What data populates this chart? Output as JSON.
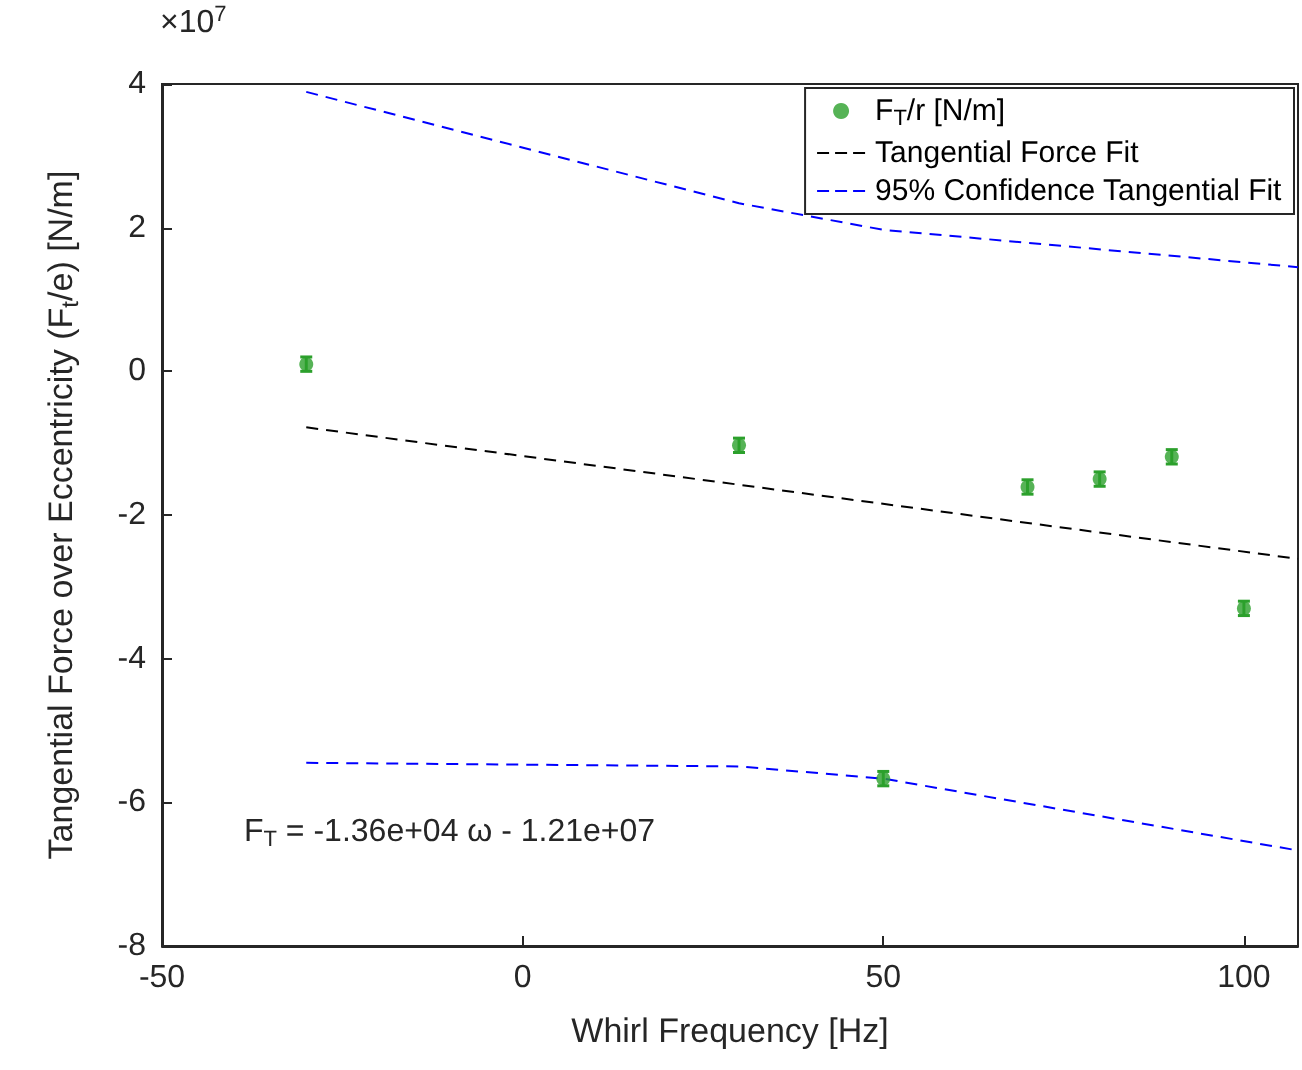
{
  "chart_data": {
    "type": "scatter",
    "xlabel": "Whirl Frequency [Hz]",
    "ylabel": "Tangential Force over Eccentricity (F$_{t}$/e) [N/m]",
    "xlim": [
      -50,
      107.5
    ],
    "xticks": [
      -50,
      0,
      50,
      100
    ],
    "ylim": [
      -8,
      4
    ],
    "yticks": [
      -8,
      -6,
      -4,
      -2,
      0,
      2,
      4
    ],
    "grid": false,
    "legend": "top right",
    "marker": "circle",
    "series": [
      {
        "name": "F$_{T}$/r [N/m]",
        "color": "#2ca02c",
        "x": [
          -30,
          30,
          50,
          70,
          80,
          90,
          100
        ],
        "values": [
          0.1,
          -1.03,
          -5.67,
          -1.61,
          -1.5,
          -1.19,
          -3.3
        ],
        "errors": [
          0.1,
          0.1,
          0.1,
          0.1,
          0.1,
          0.1,
          0.1
        ]
      },
      {
        "name": "Tangential Force Fit",
        "type": "line",
        "color": "#000000",
        "line_style": "dashed",
        "marker": "none",
        "x": [
          -30,
          107.5
        ],
        "values": [
          -0.78,
          -2.61
        ]
      },
      {
        "name": "95% Confidence Tangential Fit",
        "type": "line",
        "color": "#0000ff",
        "line_style": "dashed",
        "marker": "none",
        "x": [
          -30,
          30,
          50,
          107.5
        ],
        "values": [
          3.89,
          2.34,
          1.97,
          1.45
        ]
      },
      {
        "type": "line",
        "color": "#0000ff",
        "line_style": "dashed",
        "marker": "none",
        "x": [
          -30,
          30,
          50,
          107.5
        ],
        "values": [
          -5.45,
          -5.5,
          -5.67,
          -6.67
        ]
      }
    ],
    "annotations": [
      "×10$^{7}$",
      "F$_{T}$ = -1.36e+04 ω - 1.21e+07"
    ]
  }
}
